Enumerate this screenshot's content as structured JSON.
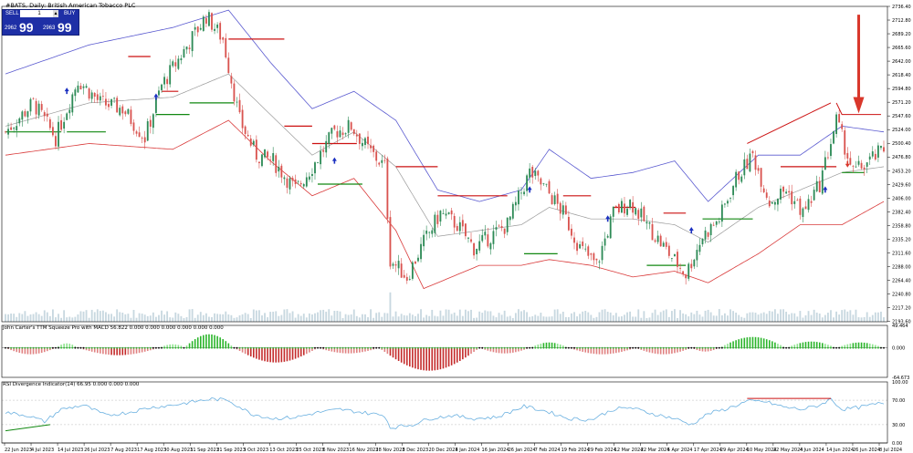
{
  "header": {
    "title": "#BATS, Daily: British American Tobacco PLC",
    "sell_label": "SELL",
    "buy_label": "BUY",
    "quantity": "1",
    "sell_price_small": "2962",
    "sell_price_big": "99",
    "buy_price_small": "2963",
    "buy_price_big": "99"
  },
  "panels": {
    "macd_label": "John Carter's TTM Squeeze Pro with MACD 56.822 0.000 0.000 0.000 0.000 0.000 0.000",
    "rsi_label": "RSI Divergence Indicator(14) 66.95 0.000 0.000 0.000"
  },
  "colors": {
    "up_candle": "#2e8b57",
    "down_candle": "#d9534f",
    "upper_band": "#5a5ad0",
    "lower_band": "#d93a3a",
    "mid_band": "#9a9a9a",
    "resistance": "#cc1111",
    "support": "#118811",
    "rsi_line": "#6ab0e0",
    "arrow_down": "#d9372b"
  },
  "chart_data": [
    {
      "type": "candlestick",
      "title": "#BATS, Daily: British American Tobacco PLC",
      "ylim": [
        2192.8,
        2736.4
      ],
      "y_ticks": [
        "2736.40",
        "2712.80",
        "2689.20",
        "2665.60",
        "2642.00",
        "2618.40",
        "2594.80",
        "2571.20",
        "2547.60",
        "2524.00",
        "2500.40",
        "2476.80",
        "2453.20",
        "2429.60",
        "2406.00",
        "2382.40",
        "2358.80",
        "2335.20",
        "2311.60",
        "2288.00",
        "2264.40",
        "2240.80",
        "2217.20",
        "2193.60"
      ],
      "x_ticks": [
        "22 Jun 2023",
        "4 Jul 2023",
        "14 Jul 2023",
        "26 Jul 2023",
        "7 Aug 2023",
        "17 Aug 2023",
        "30 Aug 2023",
        "11 Sep 2023",
        "21 Sep 2023",
        "3 Oct 2023",
        "13 Oct 2023",
        "25 Oct 2023",
        "6 Nov 2023",
        "16 Nov 2023",
        "28 Nov 2023",
        "8 Dec 2023",
        "20 Dec 2023",
        "4 Jan 2024",
        "16 Jan 2024",
        "26 Jan 2024",
        "7 Feb 2024",
        "19 Feb 2024",
        "29 Feb 2024",
        "12 Mar 2024",
        "22 Mar 2024",
        "5 Apr 2024",
        "17 Apr 2024",
        "29 Apr 2024",
        "10 May 2024",
        "22 May 2024",
        "4 Jun 2024",
        "14 Jun 2024",
        "26 Jun 2024",
        "8 Jul 2024"
      ],
      "anchors": [
        {
          "t": 0,
          "c": 2520
        },
        {
          "t": 10,
          "c": 2570
        },
        {
          "t": 18,
          "c": 2510
        },
        {
          "t": 26,
          "c": 2610
        },
        {
          "t": 34,
          "c": 2570
        },
        {
          "t": 42,
          "c": 2560
        },
        {
          "t": 50,
          "c": 2510
        },
        {
          "t": 56,
          "c": 2600
        },
        {
          "t": 64,
          "c": 2660
        },
        {
          "t": 72,
          "c": 2720
        },
        {
          "t": 78,
          "c": 2680
        },
        {
          "t": 84,
          "c": 2540
        },
        {
          "t": 90,
          "c": 2480
        },
        {
          "t": 96,
          "c": 2470
        },
        {
          "t": 104,
          "c": 2420
        },
        {
          "t": 110,
          "c": 2460
        },
        {
          "t": 118,
          "c": 2520
        },
        {
          "t": 124,
          "c": 2530
        },
        {
          "t": 130,
          "c": 2490
        },
        {
          "t": 136,
          "c": 2460
        },
        {
          "t": 138,
          "c": 2300
        },
        {
          "t": 144,
          "c": 2270
        },
        {
          "t": 150,
          "c": 2330
        },
        {
          "t": 156,
          "c": 2380
        },
        {
          "t": 162,
          "c": 2360
        },
        {
          "t": 168,
          "c": 2320
        },
        {
          "t": 174,
          "c": 2340
        },
        {
          "t": 180,
          "c": 2360
        },
        {
          "t": 188,
          "c": 2450
        },
        {
          "t": 194,
          "c": 2420
        },
        {
          "t": 200,
          "c": 2380
        },
        {
          "t": 206,
          "c": 2320
        },
        {
          "t": 212,
          "c": 2290
        },
        {
          "t": 218,
          "c": 2380
        },
        {
          "t": 224,
          "c": 2400
        },
        {
          "t": 230,
          "c": 2360
        },
        {
          "t": 238,
          "c": 2310
        },
        {
          "t": 244,
          "c": 2275
        },
        {
          "t": 250,
          "c": 2340
        },
        {
          "t": 256,
          "c": 2370
        },
        {
          "t": 262,
          "c": 2440
        },
        {
          "t": 268,
          "c": 2480
        },
        {
          "t": 274,
          "c": 2400
        },
        {
          "t": 280,
          "c": 2420
        },
        {
          "t": 286,
          "c": 2380
        },
        {
          "t": 292,
          "c": 2430
        },
        {
          "t": 298,
          "c": 2540
        },
        {
          "t": 304,
          "c": 2450
        },
        {
          "t": 310,
          "c": 2470
        },
        {
          "t": 315,
          "c": 2490
        }
      ],
      "bollinger": {
        "upper": [
          [
            0,
            2620
          ],
          [
            30,
            2670
          ],
          [
            60,
            2700
          ],
          [
            80,
            2730
          ],
          [
            95,
            2640
          ],
          [
            110,
            2560
          ],
          [
            125,
            2590
          ],
          [
            140,
            2540
          ],
          [
            155,
            2420
          ],
          [
            170,
            2400
          ],
          [
            185,
            2420
          ],
          [
            195,
            2490
          ],
          [
            210,
            2440
          ],
          [
            225,
            2450
          ],
          [
            240,
            2470
          ],
          [
            252,
            2400
          ],
          [
            270,
            2480
          ],
          [
            285,
            2480
          ],
          [
            300,
            2530
          ],
          [
            315,
            2520
          ]
        ],
        "middle": [
          [
            0,
            2530
          ],
          [
            30,
            2570
          ],
          [
            60,
            2580
          ],
          [
            80,
            2620
          ],
          [
            95,
            2550
          ],
          [
            110,
            2480
          ],
          [
            125,
            2520
          ],
          [
            140,
            2460
          ],
          [
            155,
            2340
          ],
          [
            170,
            2350
          ],
          [
            185,
            2360
          ],
          [
            195,
            2390
          ],
          [
            210,
            2370
          ],
          [
            225,
            2370
          ],
          [
            240,
            2360
          ],
          [
            252,
            2330
          ],
          [
            270,
            2390
          ],
          [
            285,
            2420
          ],
          [
            300,
            2450
          ],
          [
            315,
            2460
          ]
        ],
        "lower": [
          [
            0,
            2480
          ],
          [
            30,
            2500
          ],
          [
            60,
            2490
          ],
          [
            80,
            2540
          ],
          [
            95,
            2470
          ],
          [
            110,
            2410
          ],
          [
            125,
            2440
          ],
          [
            140,
            2350
          ],
          [
            150,
            2250
          ],
          [
            170,
            2290
          ],
          [
            185,
            2290
          ],
          [
            195,
            2300
          ],
          [
            210,
            2290
          ],
          [
            225,
            2270
          ],
          [
            240,
            2280
          ],
          [
            252,
            2260
          ],
          [
            270,
            2310
          ],
          [
            285,
            2360
          ],
          [
            300,
            2360
          ],
          [
            315,
            2400
          ]
        ]
      },
      "markers_up": [
        [
          22,
          2590
        ],
        [
          54,
          2580
        ],
        [
          118,
          2470
        ],
        [
          188,
          2420
        ],
        [
          216,
          2370
        ],
        [
          246,
          2350
        ],
        [
          294,
          2420
        ]
      ],
      "markers_down": [
        [
          302,
          2465
        ]
      ]
    },
    {
      "type": "bar",
      "title": "John Carter's TTM Squeeze Pro with MACD 56.822 0.000 0.000 0.000 0.000 0.000 0.000",
      "ylim": [
        -64.673,
        49.464
      ],
      "y_ticks": [
        "49.464",
        "0.000",
        "-64.673"
      ],
      "waves": [
        {
          "t0": 0,
          "t1": 18,
          "amp": -14
        },
        {
          "t0": 18,
          "t1": 26,
          "amp": 10
        },
        {
          "t0": 26,
          "t1": 55,
          "amp": -16
        },
        {
          "t0": 55,
          "t1": 65,
          "amp": 8
        },
        {
          "t0": 64,
          "t1": 82,
          "amp": 30
        },
        {
          "t0": 82,
          "t1": 112,
          "amp": -32
        },
        {
          "t0": 112,
          "t1": 134,
          "amp": -12
        },
        {
          "t0": 134,
          "t1": 170,
          "amp": -50
        },
        {
          "t0": 170,
          "t1": 188,
          "amp": -12
        },
        {
          "t0": 188,
          "t1": 202,
          "amp": 12
        },
        {
          "t0": 202,
          "t1": 226,
          "amp": -14
        },
        {
          "t0": 226,
          "t1": 246,
          "amp": -14
        },
        {
          "t0": 246,
          "t1": 256,
          "amp": -8
        },
        {
          "t0": 256,
          "t1": 280,
          "amp": 24
        },
        {
          "t0": 280,
          "t1": 298,
          "amp": 14
        },
        {
          "t0": 298,
          "t1": 315,
          "amp": 12
        }
      ]
    },
    {
      "type": "line",
      "title": "RSI Divergence Indicator(14) 66.95 0.000 0.000 0.000",
      "ylim": [
        0,
        100
      ],
      "y_ticks": [
        "100.00",
        "70.00",
        "30.00",
        "0.00"
      ],
      "points": [
        [
          0,
          50
        ],
        [
          8,
          45
        ],
        [
          14,
          35
        ],
        [
          20,
          55
        ],
        [
          28,
          62
        ],
        [
          36,
          45
        ],
        [
          44,
          50
        ],
        [
          52,
          58
        ],
        [
          60,
          62
        ],
        [
          68,
          68
        ],
        [
          74,
          72
        ],
        [
          80,
          70
        ],
        [
          88,
          48
        ],
        [
          96,
          40
        ],
        [
          104,
          42
        ],
        [
          112,
          50
        ],
        [
          120,
          55
        ],
        [
          128,
          50
        ],
        [
          136,
          45
        ],
        [
          138,
          25
        ],
        [
          146,
          30
        ],
        [
          152,
          40
        ],
        [
          160,
          45
        ],
        [
          168,
          40
        ],
        [
          176,
          42
        ],
        [
          186,
          60
        ],
        [
          194,
          52
        ],
        [
          202,
          40
        ],
        [
          210,
          38
        ],
        [
          218,
          55
        ],
        [
          224,
          58
        ],
        [
          232,
          48
        ],
        [
          240,
          40
        ],
        [
          246,
          30
        ],
        [
          252,
          48
        ],
        [
          258,
          55
        ],
        [
          266,
          68
        ],
        [
          272,
          68
        ],
        [
          280,
          58
        ],
        [
          286,
          55
        ],
        [
          292,
          62
        ],
        [
          296,
          72
        ],
        [
          300,
          55
        ],
        [
          306,
          58
        ],
        [
          315,
          66
        ]
      ]
    }
  ]
}
